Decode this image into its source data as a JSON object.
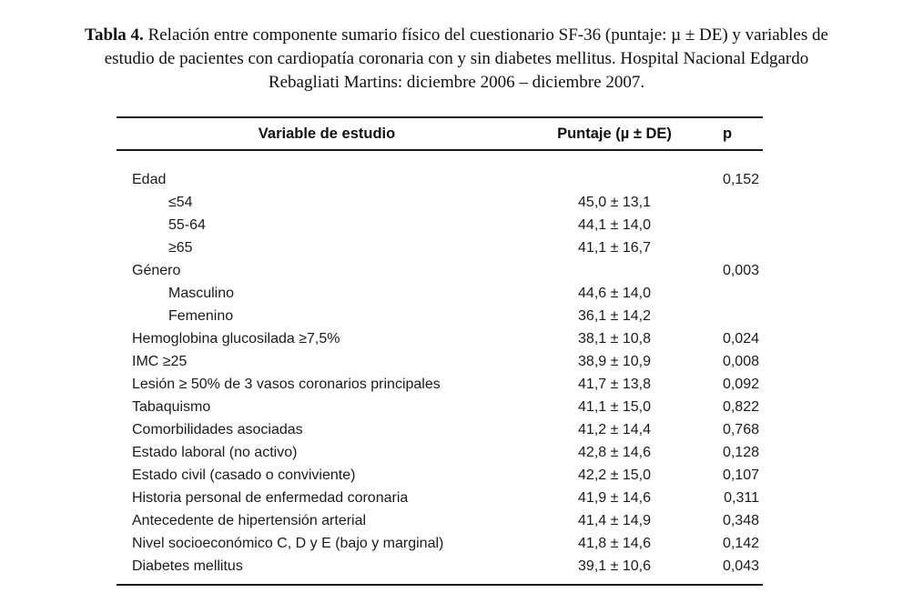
{
  "caption": {
    "label": "Tabla 4.",
    "line1_rest": " Relación entre componente sumario físico del cuestionario SF-36 (puntaje: µ ± DE) y variables de",
    "line2": "estudio de pacientes con cardiopatía coronaria con y sin diabetes mellitus. Hospital Nacional Edgardo",
    "line3": "Rebagliati Martins: diciembre 2006 – diciembre 2007."
  },
  "table": {
    "columns": [
      "Variable de estudio",
      "Puntaje (µ ± DE)",
      "p"
    ],
    "rows": [
      {
        "variable": "Edad",
        "indent": false,
        "puntaje": "",
        "p": "0,152"
      },
      {
        "variable": "≤54",
        "indent": true,
        "puntaje": "45,0 ± 13,1",
        "p": ""
      },
      {
        "variable": "55-64",
        "indent": true,
        "puntaje": "44,1 ± 14,0",
        "p": ""
      },
      {
        "variable": "≥65",
        "indent": true,
        "puntaje": "41,1 ± 16,7",
        "p": ""
      },
      {
        "variable": "Género",
        "indent": false,
        "puntaje": "",
        "p": "0,003"
      },
      {
        "variable": "Masculino",
        "indent": true,
        "puntaje": "44,6 ± 14,0",
        "p": ""
      },
      {
        "variable": "Femenino",
        "indent": true,
        "puntaje": "36,1 ± 14,2",
        "p": ""
      },
      {
        "variable": "Hemoglobina glucosilada ≥7,5%",
        "indent": false,
        "puntaje": "38,1 ± 10,8",
        "p": "0,024"
      },
      {
        "variable": "IMC ≥25",
        "indent": false,
        "puntaje": "38,9 ± 10,9",
        "p": "0,008"
      },
      {
        "variable": "Lesión ≥ 50% de 3 vasos coronarios principales",
        "indent": false,
        "puntaje": "41,7 ± 13,8",
        "p": "0,092"
      },
      {
        "variable": "Tabaquismo",
        "indent": false,
        "puntaje": "41,1 ± 15,0",
        "p": "0,822"
      },
      {
        "variable": "Comorbilidades asociadas",
        "indent": false,
        "puntaje": "41,2 ± 14,4",
        "p": "0,768"
      },
      {
        "variable": "Estado laboral (no activo)",
        "indent": false,
        "puntaje": "42,8 ± 14,6",
        "p": "0,128"
      },
      {
        "variable": "Estado civil (casado o conviviente)",
        "indent": false,
        "puntaje": "42,2 ± 15,0",
        "p": "0,107"
      },
      {
        "variable": "Historia personal de enfermedad coronaria",
        "indent": false,
        "puntaje": "41,9 ± 14,6",
        "p": "0,311"
      },
      {
        "variable": "Antecedente de hipertensión arterial",
        "indent": false,
        "puntaje": "41,4 ± 14,9",
        "p": "0,348"
      },
      {
        "variable": "Nivel socioeconómico C, D y E (bajo y marginal)",
        "indent": false,
        "puntaje": "41,8 ± 14,6",
        "p": "0,142"
      },
      {
        "variable": "Diabetes mellitus",
        "indent": false,
        "puntaje": "39,1 ± 10,6",
        "p": "0,043"
      }
    ]
  },
  "colors": {
    "text": "#1b1b1b",
    "rule": "#1a1a1a",
    "background": "#ffffff"
  }
}
